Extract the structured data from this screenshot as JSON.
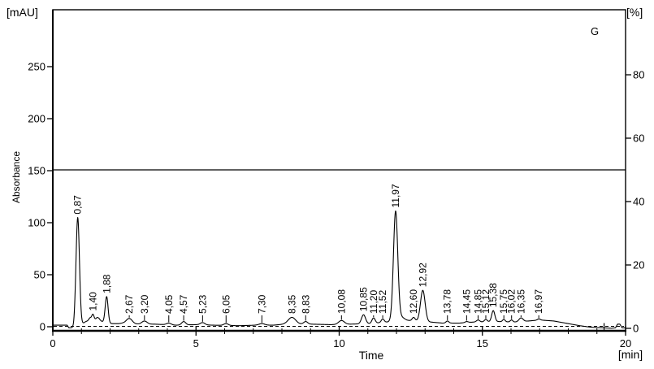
{
  "colors": {
    "foreground": "#000000",
    "background": "#ffffff"
  },
  "chart_data": {
    "type": "line",
    "title": "",
    "annotation": "G",
    "x_axis": {
      "axis_label": "Time",
      "unit_label": "[min]",
      "range": [
        0,
        20
      ],
      "ticks": [
        0,
        5,
        10,
        15,
        20
      ],
      "minor_tick_step": 1
    },
    "left_axis": {
      "axis_label": "Absorbance",
      "unit_label": "[mAU]",
      "range": [
        0,
        305
      ],
      "ticks": [
        0,
        50,
        100,
        150,
        200,
        250
      ]
    },
    "right_axis": {
      "unit_label": "[%]",
      "range": [
        0,
        102
      ],
      "ticks": [
        0,
        20,
        40,
        60,
        80
      ]
    },
    "reference_lines": {
      "solid_percent": 50,
      "dashed_mAU": 0
    },
    "grid": false,
    "peaks": [
      {
        "label": "0,87",
        "rt_min": 0.87,
        "apex_mAU": 105,
        "sigma": 0.06
      },
      {
        "label": "1,40",
        "rt_min": 1.4,
        "apex_mAU": 12,
        "sigma": 0.04
      },
      {
        "label": "1,88",
        "rt_min": 1.88,
        "apex_mAU": 29,
        "sigma": 0.05
      },
      {
        "label": "2,67",
        "rt_min": 2.67,
        "apex_mAU": 8,
        "sigma": 0.1
      },
      {
        "label": "3,20",
        "rt_min": 3.2,
        "apex_mAU": 5.5,
        "sigma": 0.09
      },
      {
        "label": "4,05",
        "rt_min": 4.05,
        "apex_mAU": 3.5,
        "sigma": 0.08
      },
      {
        "label": "4,57",
        "rt_min": 4.57,
        "apex_mAU": 5,
        "sigma": 0.07
      },
      {
        "label": "5,23",
        "rt_min": 5.23,
        "apex_mAU": 4,
        "sigma": 0.08
      },
      {
        "label": "6,05",
        "rt_min": 6.05,
        "apex_mAU": 3,
        "sigma": 0.08
      },
      {
        "label": "7,30",
        "rt_min": 7.3,
        "apex_mAU": 3,
        "sigma": 0.1
      },
      {
        "label": "8,35",
        "rt_min": 8.35,
        "apex_mAU": 9,
        "sigma": 0.13
      },
      {
        "label": "8,83",
        "rt_min": 8.83,
        "apex_mAU": 5,
        "sigma": 0.07
      },
      {
        "label": "10,08",
        "rt_min": 10.08,
        "apex_mAU": 6,
        "sigma": 0.1
      },
      {
        "label": "10,85",
        "rt_min": 10.85,
        "apex_mAU": 11.5,
        "sigma": 0.07
      },
      {
        "label": "11,20",
        "rt_min": 11.2,
        "apex_mAU": 8.5,
        "sigma": 0.055
      },
      {
        "label": "11,52",
        "rt_min": 11.52,
        "apex_mAU": 7.5,
        "sigma": 0.05
      },
      {
        "label": "11,97",
        "rt_min": 11.97,
        "apex_mAU": 111,
        "sigma": 0.075
      },
      {
        "label": "12,60",
        "rt_min": 12.6,
        "apex_mAU": 9,
        "sigma": 0.05
      },
      {
        "label": "12,92",
        "rt_min": 12.92,
        "apex_mAU": 35,
        "sigma": 0.08
      },
      {
        "label": "13,78",
        "rt_min": 13.78,
        "apex_mAU": 5.5,
        "sigma": 0.05
      },
      {
        "label": "14,45",
        "rt_min": 14.45,
        "apex_mAU": 5,
        "sigma": 0.055
      },
      {
        "label": "14,85",
        "rt_min": 14.85,
        "apex_mAU": 6.5,
        "sigma": 0.055
      },
      {
        "label": "15,12",
        "rt_min": 15.12,
        "apex_mAU": 7,
        "sigma": 0.05
      },
      {
        "label": "15,38",
        "rt_min": 15.38,
        "apex_mAU": 15.5,
        "sigma": 0.055
      },
      {
        "label": "15,75",
        "rt_min": 15.75,
        "apex_mAU": 7,
        "sigma": 0.045
      },
      {
        "label": "16,02",
        "rt_min": 16.02,
        "apex_mAU": 6.5,
        "sigma": 0.045
      },
      {
        "label": "16,35",
        "rt_min": 16.35,
        "apex_mAU": 8.5,
        "sigma": 0.07
      },
      {
        "label": "16,97",
        "rt_min": 16.97,
        "apex_mAU": 7.5,
        "sigma": 0.05
      }
    ],
    "unlabeled_bumps": [
      {
        "rt_min": 1.3,
        "height_mAU": 2.0,
        "sigma": 0.04
      },
      {
        "rt_min": 1.55,
        "height_mAU": 2.5,
        "sigma": 0.05
      },
      {
        "rt_min": 12.18,
        "height_mAU": 3.0,
        "sigma": 0.1
      }
    ],
    "baseline_mAU": [
      [
        0.0,
        1.5
      ],
      [
        0.5,
        1.5
      ],
      [
        0.56,
        -1.0
      ],
      [
        0.73,
        -1.0
      ],
      [
        0.78,
        1.0
      ],
      [
        1.0,
        2.0
      ],
      [
        1.15,
        5.0
      ],
      [
        1.3,
        6.5
      ],
      [
        1.5,
        6.0
      ],
      [
        1.62,
        7.0
      ],
      [
        1.72,
        5.0
      ],
      [
        1.95,
        3.0
      ],
      [
        2.3,
        3.0
      ],
      [
        2.45,
        3.5
      ],
      [
        3.0,
        2.5
      ],
      [
        3.55,
        2.5
      ],
      [
        4.3,
        1.5
      ],
      [
        5.0,
        2.0
      ],
      [
        5.6,
        1.5
      ],
      [
        6.5,
        1.0
      ],
      [
        7.1,
        1.5
      ],
      [
        7.7,
        1.5
      ],
      [
        8.1,
        2.5
      ],
      [
        9.0,
        2.5
      ],
      [
        9.7,
        2.0
      ],
      [
        10.4,
        2.5
      ],
      [
        11.05,
        3.0
      ],
      [
        11.65,
        4.5
      ],
      [
        12.1,
        6.0
      ],
      [
        12.45,
        6.0
      ],
      [
        13.2,
        4.5
      ],
      [
        13.6,
        3.5
      ],
      [
        14.2,
        3.5
      ],
      [
        14.7,
        4.5
      ],
      [
        15.55,
        5.0
      ],
      [
        16.1,
        4.5
      ],
      [
        16.6,
        5.5
      ],
      [
        17.0,
        6.5
      ],
      [
        17.5,
        5.5
      ],
      [
        18.0,
        3.0
      ],
      [
        18.4,
        1.0
      ],
      [
        18.8,
        -0.5
      ],
      [
        19.2,
        -1.0
      ],
      [
        19.5,
        -1.5
      ],
      [
        19.65,
        -1.0
      ],
      [
        19.72,
        2.5
      ],
      [
        19.8,
        2.5
      ],
      [
        19.88,
        -1.0
      ],
      [
        20.0,
        -1.0
      ]
    ],
    "marker_ticks_min": [
      19.25
    ]
  }
}
